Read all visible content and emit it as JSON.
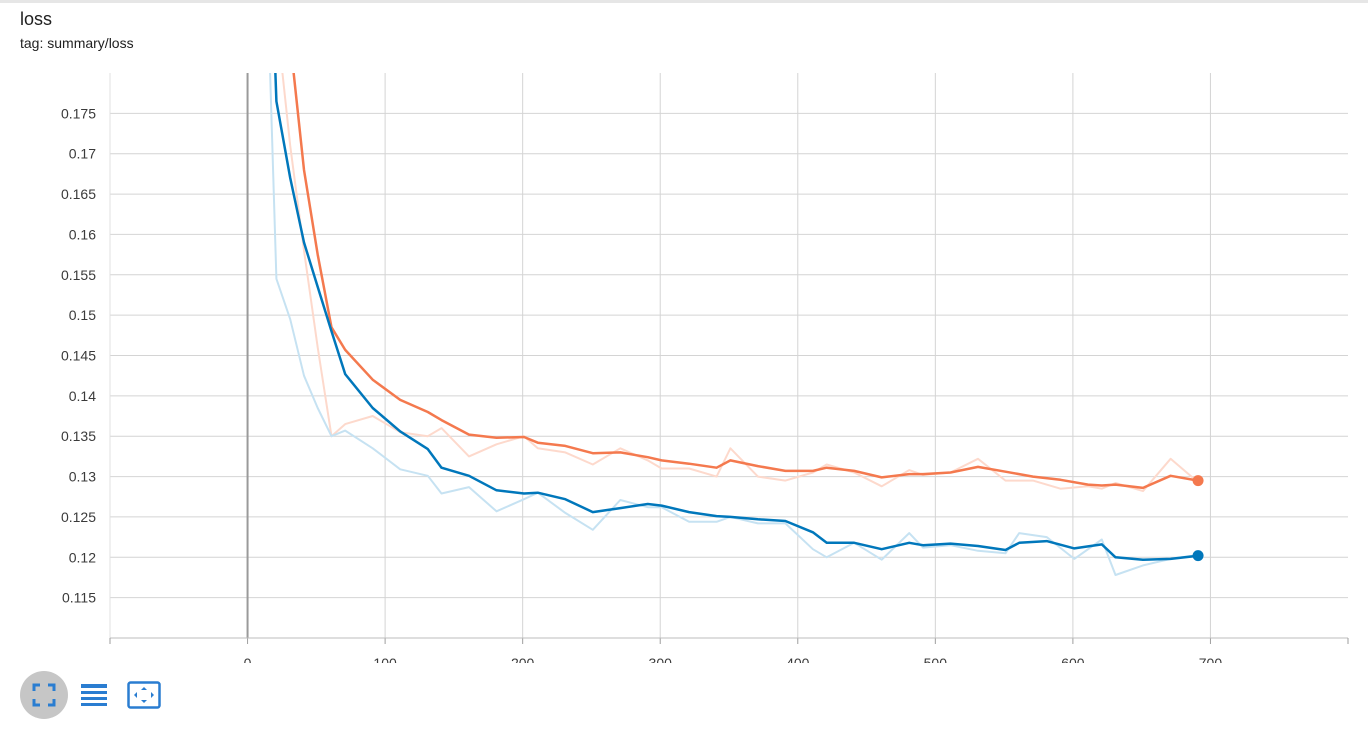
{
  "card": {
    "title": "loss",
    "tag": "tag: summary/loss"
  },
  "toolbar": [
    {
      "name": "expand-icon",
      "active": true
    },
    {
      "name": "data-table-icon",
      "active": false
    },
    {
      "name": "fit-domain-icon",
      "active": false
    }
  ],
  "chart_data": {
    "type": "line",
    "title": "loss",
    "xlim": [
      -100,
      800
    ],
    "ylim": [
      0.11,
      0.18
    ],
    "xticks": [
      0,
      100,
      200,
      300,
      400,
      500,
      600,
      700
    ],
    "xtick_labels": [
      "0",
      "100",
      "200",
      "300",
      "400",
      "500",
      "600",
      "700"
    ],
    "yticks": [
      0.115,
      0.12,
      0.125,
      0.13,
      0.135,
      0.14,
      0.145,
      0.15,
      0.155,
      0.16,
      0.165,
      0.17,
      0.175
    ],
    "ytick_labels": [
      "0.115",
      "0.12",
      "0.125",
      "0.13",
      "0.135",
      "0.14",
      "0.145",
      "0.15",
      "0.155",
      "0.16",
      "0.165",
      "0.17",
      "0.175"
    ],
    "grid": true,
    "series": [
      {
        "color": "#f4794e",
        "raw_color": "#fdd9cc",
        "x": [
          11,
          21,
          31,
          41,
          51,
          61,
          71,
          91,
          111,
          131,
          141,
          161,
          181,
          201,
          211,
          231,
          251,
          271,
          291,
          301,
          321,
          341,
          351,
          371,
          391,
          411,
          421,
          441,
          461,
          481,
          491,
          511,
          531,
          551,
          571,
          591,
          611,
          621,
          631,
          651,
          671,
          691
        ],
        "raw": [
          0.21,
          0.187,
          0.171,
          0.158,
          0.146,
          0.135,
          0.1365,
          0.1375,
          0.1355,
          0.135,
          0.136,
          0.1325,
          0.134,
          0.135,
          0.1335,
          0.133,
          0.1315,
          0.1335,
          0.132,
          0.131,
          0.131,
          0.13,
          0.1335,
          0.13,
          0.1295,
          0.1305,
          0.1315,
          0.1305,
          0.1288,
          0.1308,
          0.1302,
          0.1305,
          0.1322,
          0.1295,
          0.1295,
          0.1285,
          0.1288,
          0.1285,
          0.1292,
          0.1282,
          0.1322,
          0.1293
        ],
        "smoothed": [
          0.235,
          0.205,
          0.184,
          0.168,
          0.1575,
          0.1485,
          0.1457,
          0.142,
          0.1395,
          0.138,
          0.137,
          0.1352,
          0.1348,
          0.1349,
          0.1342,
          0.1338,
          0.1329,
          0.133,
          0.1324,
          0.132,
          0.1316,
          0.1311,
          0.132,
          0.1313,
          0.1307,
          0.1307,
          0.1311,
          0.1307,
          0.1299,
          0.1303,
          0.1303,
          0.1305,
          0.1312,
          0.1306,
          0.13,
          0.1296,
          0.129,
          0.1289,
          0.129,
          0.1286,
          0.1301,
          0.1295
        ]
      },
      {
        "color": "#0077bb",
        "raw_color": "#c6e2f2",
        "x": [
          11,
          21,
          31,
          41,
          51,
          61,
          71,
          91,
          111,
          131,
          141,
          161,
          181,
          201,
          211,
          231,
          251,
          271,
          291,
          301,
          321,
          341,
          351,
          371,
          391,
          411,
          421,
          441,
          461,
          481,
          491,
          511,
          531,
          551,
          561,
          581,
          601,
          621,
          631,
          651,
          671,
          691
        ],
        "raw": [
          0.21,
          0.1545,
          0.1495,
          0.1425,
          0.1385,
          0.135,
          0.1357,
          0.1335,
          0.1309,
          0.1301,
          0.1279,
          0.1287,
          0.1257,
          0.1272,
          0.128,
          0.1255,
          0.1234,
          0.1271,
          0.1262,
          0.1262,
          0.1244,
          0.1244,
          0.125,
          0.1242,
          0.1242,
          0.121,
          0.12,
          0.1218,
          0.1197,
          0.123,
          0.1212,
          0.1215,
          0.1208,
          0.1205,
          0.123,
          0.1225,
          0.1198,
          0.1222,
          0.1178,
          0.119,
          0.1198,
          0.1203
        ],
        "smoothed": [
          0.224,
          0.1765,
          0.167,
          0.159,
          0.1535,
          0.148,
          0.1427,
          0.1385,
          0.1356,
          0.1334,
          0.1311,
          0.1301,
          0.1283,
          0.1279,
          0.128,
          0.1272,
          0.1256,
          0.1261,
          0.1266,
          0.1264,
          0.1256,
          0.1251,
          0.125,
          0.1247,
          0.1245,
          0.1231,
          0.1218,
          0.1218,
          0.121,
          0.1218,
          0.1215,
          0.1217,
          0.1214,
          0.1209,
          0.1218,
          0.122,
          0.1211,
          0.1216,
          0.12,
          0.1197,
          0.1198,
          0.1202
        ]
      }
    ]
  }
}
